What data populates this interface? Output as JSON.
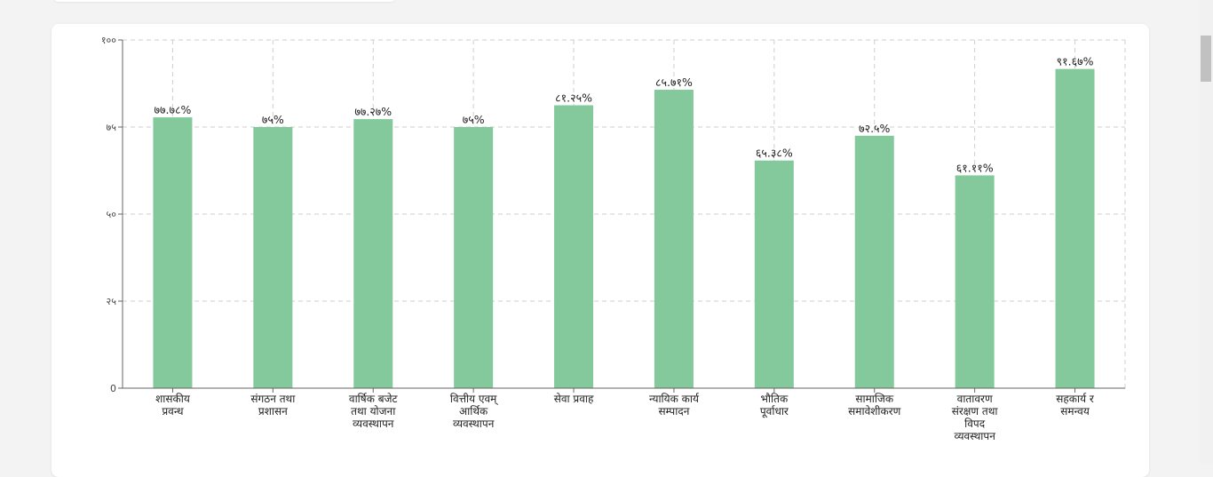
{
  "chart_data": {
    "type": "bar",
    "categories": [
      [
        "शासकीय",
        "प्रवन्ध"
      ],
      [
        "संगठन तथा",
        "प्रशासन"
      ],
      [
        "वार्षिक बजेट",
        "तथा योजना",
        "व्यवस्थापन"
      ],
      [
        "वित्तीय एवम्",
        "आर्थिक",
        "व्यवस्थापन"
      ],
      [
        "सेवा प्रवाह"
      ],
      [
        "न्यायिक कार्य",
        "सम्पादन"
      ],
      [
        "भौतिक",
        "पूर्वाधार"
      ],
      [
        "सामाजिक",
        "समावेशीकरण"
      ],
      [
        "वातावरण",
        "संरक्षण तथा",
        "विपद",
        "व्यवस्थापन"
      ],
      [
        "सहकार्य र",
        "समन्वय"
      ]
    ],
    "values": [
      77.78,
      75,
      77.27,
      75,
      81.25,
      85.71,
      65.38,
      72.5,
      61.11,
      91.67
    ],
    "value_labels": [
      "७७.७८%",
      "७५%",
      "७७.२७%",
      "७५%",
      "८१.२५%",
      "८५.७१%",
      "६५.३८%",
      "७२.५%",
      "६१.११%",
      "९१.६७%"
    ],
    "yticks": [
      0,
      25,
      50,
      75,
      100
    ],
    "ytick_labels": [
      "0",
      "२५",
      "५०",
      "७५",
      "१००"
    ],
    "ylim": [
      0,
      100
    ],
    "grid": true,
    "bar_color": "#84c99c",
    "title": "",
    "xlabel": "",
    "ylabel": ""
  }
}
